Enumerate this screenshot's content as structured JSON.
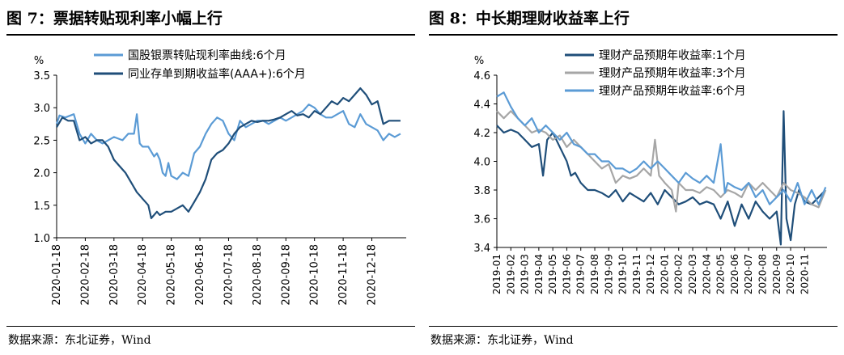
{
  "charts": [
    {
      "title": "图 7：票据转贴现利率小幅上行",
      "source": "数据来源：东北证券，Wind",
      "chart_data": {
        "type": "line",
        "title": "图 7：票据转贴现利率小幅上行",
        "ylabel": "%",
        "ylim": [
          1.0,
          3.5
        ],
        "yticks": [
          1.0,
          1.5,
          2.0,
          2.5,
          3.0,
          3.5
        ],
        "yticklabels": [
          "1.0",
          "1.5",
          "2.0",
          "2.5",
          "3.0",
          "3.5"
        ],
        "xlim": [
          0,
          12.2
        ],
        "xticklabels": [
          "2020-01-18",
          "2020-02-18",
          "2020-03-18",
          "2020-04-18",
          "2020-05-18",
          "2020-06-18",
          "2020-07-18",
          "2020-08-18",
          "2020-09-18",
          "2020-10-18",
          "2020-11-18",
          "2020-12-18"
        ],
        "grid": false,
        "legend": "top-center",
        "series": [
          {
            "name": "国股银票转贴现利率曲线:6个月",
            "color": "#5b9bd5",
            "x": [
              0,
              0.1,
              0.3,
              0.6,
              0.8,
              1.0,
              1.2,
              1.4,
              1.6,
              1.8,
              2.0,
              2.3,
              2.5,
              2.7,
              2.8,
              2.9,
              3.0,
              3.2,
              3.4,
              3.5,
              3.6,
              3.7,
              3.8,
              3.9,
              4.0,
              4.2,
              4.4,
              4.6,
              4.8,
              5.0,
              5.2,
              5.4,
              5.6,
              5.8,
              6.0,
              6.2,
              6.4,
              6.6,
              6.8,
              7.0,
              7.2,
              7.4,
              7.6,
              7.8,
              8.0,
              8.2,
              8.4,
              8.6,
              8.8,
              9.0,
              9.2,
              9.4,
              9.6,
              9.8,
              10.0,
              10.2,
              10.4,
              10.6,
              10.8,
              11.0,
              11.2,
              11.4,
              11.6,
              11.8,
              12.0
            ],
            "values": [
              2.75,
              2.88,
              2.85,
              2.9,
              2.6,
              2.45,
              2.6,
              2.5,
              2.45,
              2.5,
              2.55,
              2.5,
              2.6,
              2.6,
              2.9,
              2.45,
              2.4,
              2.4,
              2.25,
              2.3,
              2.2,
              2.0,
              1.95,
              2.15,
              1.95,
              1.9,
              2.0,
              1.95,
              2.3,
              2.4,
              2.6,
              2.75,
              2.85,
              2.8,
              2.6,
              2.5,
              2.8,
              2.7,
              2.75,
              2.8,
              2.8,
              2.75,
              2.8,
              2.85,
              2.8,
              2.85,
              2.9,
              2.95,
              3.05,
              3.0,
              2.9,
              2.85,
              2.85,
              2.9,
              2.95,
              2.75,
              2.7,
              2.9,
              2.75,
              2.7,
              2.65,
              2.5,
              2.6,
              2.55,
              2.6
            ]
          },
          {
            "name": "同业存单到期收益率(AAA+):6个月",
            "color": "#1f4e79",
            "x": [
              0,
              0.2,
              0.4,
              0.6,
              0.8,
              1.0,
              1.2,
              1.4,
              1.6,
              1.8,
              2.0,
              2.2,
              2.4,
              2.6,
              2.8,
              2.9,
              3.0,
              3.1,
              3.2,
              3.3,
              3.4,
              3.5,
              3.6,
              3.8,
              4.0,
              4.2,
              4.4,
              4.6,
              4.8,
              5.0,
              5.2,
              5.4,
              5.6,
              5.8,
              6.0,
              6.2,
              6.4,
              6.6,
              6.8,
              7.0,
              7.2,
              7.4,
              7.6,
              7.8,
              8.0,
              8.2,
              8.4,
              8.6,
              8.8,
              9.0,
              9.2,
              9.4,
              9.6,
              9.8,
              10.0,
              10.2,
              10.4,
              10.6,
              10.8,
              11.0,
              11.2,
              11.4,
              11.6,
              11.8,
              12.0
            ],
            "values": [
              2.7,
              2.85,
              2.8,
              2.8,
              2.5,
              2.55,
              2.45,
              2.5,
              2.5,
              2.4,
              2.2,
              2.1,
              2.0,
              1.85,
              1.7,
              1.65,
              1.6,
              1.55,
              1.5,
              1.3,
              1.35,
              1.4,
              1.35,
              1.4,
              1.4,
              1.45,
              1.5,
              1.4,
              1.55,
              1.7,
              1.9,
              2.2,
              2.3,
              2.35,
              2.45,
              2.6,
              2.7,
              2.75,
              2.8,
              2.78,
              2.8,
              2.8,
              2.82,
              2.85,
              2.9,
              2.95,
              2.88,
              2.9,
              2.85,
              2.95,
              2.9,
              3.0,
              3.1,
              3.05,
              3.15,
              3.1,
              3.2,
              3.3,
              3.2,
              3.05,
              3.1,
              2.75,
              2.8,
              2.8,
              2.8
            ]
          }
        ]
      }
    },
    {
      "title": "图 8：中长期理财收益率上行",
      "source": "数据来源：东北证券，Wind",
      "chart_data": {
        "type": "line",
        "title": "图 8：中长期理财收益率上行",
        "ylabel": "%",
        "ylim": [
          3.4,
          4.6
        ],
        "yticks": [
          3.4,
          3.6,
          3.8,
          4.0,
          4.2,
          4.4,
          4.6
        ],
        "yticklabels": [
          "3.4",
          "3.6",
          "3.8",
          "4.0",
          "4.2",
          "4.4",
          "4.6"
        ],
        "xlim": [
          0,
          23.6
        ],
        "xticklabels": [
          "2019-01",
          "2019-02",
          "2019-03",
          "2019-04",
          "2019-05",
          "2019-06",
          "2019-07",
          "2019-08",
          "2019-09",
          "2019-10",
          "2019-11",
          "2019-12",
          "2020-01",
          "2020-02",
          "2020-03",
          "2020-04",
          "2020-05",
          "2020-06",
          "2020-07",
          "2020-08",
          "2020-09",
          "2020-10",
          "2020-11"
        ],
        "grid": false,
        "legend": "top-right",
        "series": [
          {
            "name": "理财产品预期年收益率:1个月",
            "color": "#1f4e79",
            "x": [
              0,
              0.5,
              1,
              1.5,
              2,
              2.5,
              3,
              3.3,
              3.6,
              4,
              4.5,
              5,
              5.3,
              5.6,
              6,
              6.5,
              7,
              7.5,
              8,
              8.5,
              9,
              9.5,
              10,
              10.5,
              11,
              11.5,
              12,
              12.5,
              13,
              13.5,
              14,
              14.5,
              15,
              15.5,
              16,
              16.5,
              17,
              17.5,
              18,
              18.5,
              19,
              19.5,
              20,
              20.3,
              20.5,
              20.7,
              21,
              21.3,
              21.6,
              22,
              22.5,
              23,
              23.5
            ],
            "values": [
              4.25,
              4.2,
              4.22,
              4.2,
              4.15,
              4.1,
              4.12,
              3.9,
              4.15,
              4.2,
              4.1,
              4.0,
              3.9,
              3.92,
              3.85,
              3.8,
              3.8,
              3.78,
              3.75,
              3.8,
              3.72,
              3.78,
              3.75,
              3.72,
              3.78,
              3.7,
              3.8,
              3.75,
              3.7,
              3.72,
              3.75,
              3.7,
              3.72,
              3.7,
              3.6,
              3.72,
              3.55,
              3.7,
              3.6,
              3.72,
              3.65,
              3.6,
              3.65,
              3.42,
              4.35,
              3.6,
              3.45,
              3.7,
              3.8,
              3.72,
              3.7,
              3.75,
              3.8
            ]
          },
          {
            "name": "理财产品预期年收益率:3个月",
            "color": "#a6a6a6",
            "x": [
              0,
              0.5,
              1,
              1.5,
              2,
              2.5,
              3,
              3.5,
              4,
              4.5,
              5,
              5.5,
              6,
              6.5,
              7,
              7.5,
              8,
              8.5,
              9,
              9.5,
              10,
              10.5,
              11,
              11.3,
              11.6,
              12,
              12.5,
              12.8,
              13,
              13.5,
              14,
              14.5,
              15,
              15.5,
              16,
              16.5,
              17,
              17.5,
              18,
              18.5,
              19,
              19.5,
              20,
              20.5,
              21,
              21.5,
              22,
              22.5,
              23,
              23.5
            ],
            "values": [
              4.35,
              4.3,
              4.35,
              4.3,
              4.25,
              4.2,
              4.22,
              4.2,
              4.15,
              4.18,
              4.1,
              4.15,
              4.1,
              4.05,
              4.0,
              3.95,
              3.98,
              3.85,
              3.9,
              3.88,
              3.9,
              3.95,
              3.9,
              4.15,
              3.9,
              3.85,
              3.8,
              3.65,
              3.85,
              3.8,
              3.8,
              3.78,
              3.82,
              3.8,
              3.75,
              3.8,
              3.78,
              3.75,
              3.85,
              3.8,
              3.85,
              3.8,
              3.75,
              3.85,
              3.8,
              3.78,
              3.75,
              3.7,
              3.68,
              3.8
            ]
          },
          {
            "name": "理财产品预期年收益率:6个月",
            "color": "#5b9bd5",
            "x": [
              0,
              0.5,
              1,
              1.5,
              2,
              2.5,
              3,
              3.5,
              4,
              4.5,
              5,
              5.5,
              6,
              6.5,
              7,
              7.5,
              8,
              8.5,
              9,
              9.5,
              10,
              10.5,
              11,
              11.5,
              12,
              12.5,
              13,
              13.5,
              14,
              14.5,
              15,
              15.5,
              16,
              16.3,
              16.5,
              17,
              17.5,
              18,
              18.5,
              19,
              19.5,
              20,
              20.5,
              21,
              21.5,
              22,
              22.5,
              23,
              23.5
            ],
            "values": [
              4.45,
              4.48,
              4.38,
              4.3,
              4.25,
              4.3,
              4.2,
              4.25,
              4.2,
              4.15,
              4.2,
              4.12,
              4.1,
              4.05,
              4.05,
              4.0,
              4.0,
              3.95,
              3.95,
              3.92,
              3.95,
              4.0,
              3.95,
              4.0,
              3.95,
              3.9,
              3.85,
              3.92,
              3.88,
              3.85,
              3.9,
              3.85,
              4.12,
              3.78,
              3.85,
              3.82,
              3.8,
              3.85,
              3.75,
              3.8,
              3.7,
              3.75,
              3.8,
              3.72,
              3.85,
              3.7,
              3.8,
              3.7,
              3.82
            ]
          }
        ]
      }
    }
  ]
}
